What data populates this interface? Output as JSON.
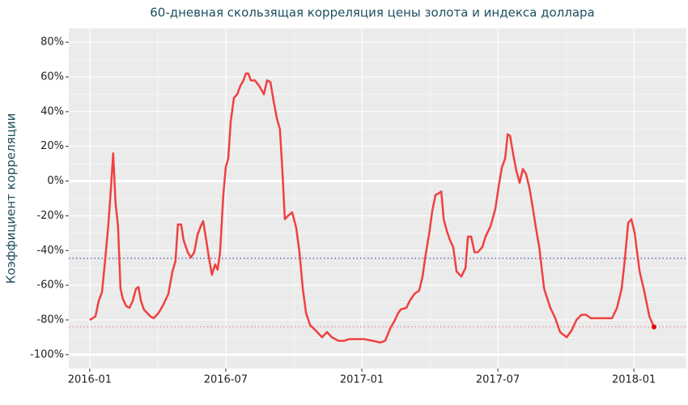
{
  "chart_data": {
    "type": "line",
    "title": "60-дневная скользящая корреляция цены золота и индекса доллара",
    "y_label": "Коэффициент корреляции",
    "xlim": [
      2015.923,
      2018.193
    ],
    "ylim": [
      -108,
      88
    ],
    "xticks": [
      {
        "value": 2016.0,
        "label": "2016-01"
      },
      {
        "value": 2016.5,
        "label": "2016-07"
      },
      {
        "value": 2017.0,
        "label": "2017-01"
      },
      {
        "value": 2017.5,
        "label": "2017-07"
      },
      {
        "value": 2018.0,
        "label": "2018-01"
      }
    ],
    "yticks": [
      {
        "value": 80,
        "label": "80%"
      },
      {
        "value": 60,
        "label": "60%"
      },
      {
        "value": 40,
        "label": "40%"
      },
      {
        "value": 20,
        "label": "20%"
      },
      {
        "value": 0,
        "label": "0%"
      },
      {
        "value": -20,
        "label": "-20%"
      },
      {
        "value": -40,
        "label": "-40%"
      },
      {
        "value": -60,
        "label": "-60%"
      },
      {
        "value": -80,
        "label": "-80%"
      },
      {
        "value": -100,
        "label": "-100%"
      }
    ],
    "grid": true,
    "hlines": [
      {
        "value": 0,
        "color": "#ffffff",
        "style": "solid"
      },
      {
        "value": -100,
        "color": "#ffffff",
        "style": "solid"
      },
      {
        "value": -44.5,
        "color": "#3a3aa0",
        "style": "dotted"
      },
      {
        "value": -84,
        "color": "#f08080",
        "style": "dotted"
      }
    ],
    "end_point": true,
    "series": [
      {
        "color": "#f04040",
        "x": [
          2016.0,
          2016.021,
          2016.033,
          2016.045,
          2016.057,
          2016.068,
          2016.077,
          2016.086,
          2016.095,
          2016.104,
          2016.113,
          2016.122,
          2016.134,
          2016.146,
          2016.158,
          2016.17,
          2016.179,
          2016.188,
          2016.199,
          2016.211,
          2016.223,
          2016.235,
          2016.253,
          2016.271,
          2016.289,
          2016.304,
          2016.315,
          2016.324,
          2016.336,
          2016.345,
          2016.36,
          2016.372,
          2016.384,
          2016.396,
          2016.408,
          2016.417,
          2016.426,
          2016.438,
          2016.449,
          2016.461,
          2016.47,
          2016.479,
          2016.491,
          2016.5,
          2016.509,
          2016.518,
          2016.53,
          2016.542,
          2016.554,
          2016.565,
          2016.574,
          2016.583,
          2016.592,
          2016.607,
          2016.622,
          2016.64,
          2016.652,
          2016.664,
          2016.676,
          2016.688,
          2016.699,
          2016.708,
          2016.717,
          2016.729,
          2016.744,
          2016.759,
          2016.771,
          2016.783,
          2016.795,
          2016.81,
          2016.83,
          2016.854,
          2016.872,
          2016.89,
          2016.914,
          2016.935,
          2016.955,
          2016.979,
          2017.009,
          2017.039,
          2017.068,
          2017.086,
          2017.104,
          2017.122,
          2017.134,
          2017.143,
          2017.164,
          2017.176,
          2017.193,
          2017.211,
          2017.223,
          2017.235,
          2017.247,
          2017.259,
          2017.271,
          2017.283,
          2017.292,
          2017.301,
          2017.313,
          2017.324,
          2017.336,
          2017.348,
          2017.366,
          2017.381,
          2017.39,
          2017.402,
          2017.414,
          2017.426,
          2017.443,
          2017.455,
          2017.473,
          2017.491,
          2017.503,
          2017.515,
          2017.527,
          2017.536,
          2017.545,
          2017.557,
          2017.568,
          2017.58,
          2017.592,
          2017.604,
          2017.616,
          2017.628,
          2017.64,
          2017.652,
          2017.67,
          2017.693,
          2017.711,
          2017.729,
          2017.753,
          2017.771,
          2017.789,
          2017.807,
          2017.824,
          2017.842,
          2017.872,
          2017.902,
          2017.92,
          2017.938,
          2017.955,
          2017.967,
          2017.979,
          2017.991,
          2018.003,
          2018.021,
          2018.039,
          2018.057,
          2018.074
        ],
        "values": [
          -80,
          -78,
          -69,
          -64,
          -45,
          -26,
          -6,
          16,
          -13,
          -26,
          -62,
          -68,
          -72,
          -73,
          -69,
          -62,
          -61,
          -69,
          -74,
          -76,
          -78,
          -79,
          -76,
          -71,
          -65,
          -52,
          -46,
          -25,
          -25,
          -34,
          -41,
          -44,
          -41,
          -31,
          -26,
          -23,
          -32,
          -44,
          -54,
          -48,
          -51,
          -41,
          -8,
          8,
          13,
          34,
          48,
          50,
          55,
          58,
          62,
          62,
          58,
          58,
          55,
          50,
          58,
          57,
          46,
          36,
          30,
          6,
          -22,
          -20,
          -18,
          -27,
          -41,
          -62,
          -76,
          -83,
          -86,
          -90,
          -87,
          -90,
          -92,
          -92,
          -91,
          -91,
          -91,
          -92,
          -93,
          -92,
          -85,
          -80,
          -76,
          -74,
          -73,
          -69,
          -65,
          -63,
          -55,
          -42,
          -31,
          -17,
          -8,
          -7,
          -6,
          -22,
          -29,
          -34,
          -38,
          -52,
          -55,
          -50,
          -32,
          -32,
          -41,
          -41,
          -38,
          -32,
          -26,
          -16,
          -3,
          8,
          13,
          27,
          26,
          15,
          6,
          -1,
          7,
          4,
          -4,
          -15,
          -27,
          -38,
          -62,
          -73,
          -79,
          -87,
          -90,
          -86,
          -80,
          -77,
          -77,
          -79,
          -79,
          -79,
          -79,
          -73,
          -62,
          -45,
          -24,
          -22,
          -30,
          -52,
          -64,
          -78,
          -84
        ]
      }
    ]
  }
}
